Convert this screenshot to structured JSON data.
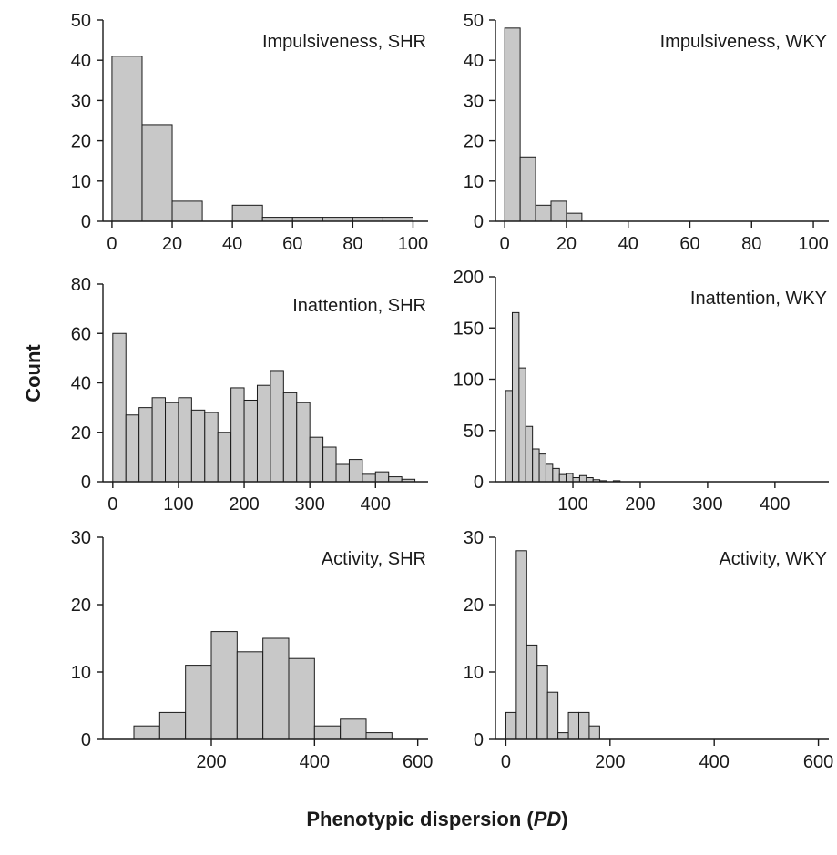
{
  "figure": {
    "ylabel": "Count",
    "xlabel_prefix": "Phenotypic dispersion (",
    "xlabel_italic": "PD",
    "xlabel_suffix": ")"
  },
  "colors": {
    "bar_fill": "#c8c8c8",
    "bar_stroke": "#1a1a1a",
    "axis": "#1a1a1a"
  },
  "chart_data": [
    {
      "type": "bar",
      "title": "Impulsiveness, SHR",
      "bin_width": 10,
      "bin_starts": [
        0,
        10,
        20,
        30,
        40,
        50,
        60,
        70,
        80,
        90
      ],
      "values": [
        41,
        24,
        5,
        0,
        4,
        1,
        1,
        1,
        1,
        1
      ],
      "xlim": [
        -3,
        105
      ],
      "ylim": [
        0,
        50
      ],
      "xticks": [
        0,
        20,
        40,
        60,
        80,
        100
      ],
      "yticks": [
        0,
        10,
        20,
        30,
        40,
        50
      ]
    },
    {
      "type": "bar",
      "title": "Impulsiveness, WKY",
      "bin_width": 5,
      "bin_starts": [
        0,
        5,
        10,
        15,
        20
      ],
      "values": [
        48,
        16,
        4,
        5,
        2
      ],
      "xlim": [
        -3,
        105
      ],
      "ylim": [
        0,
        50
      ],
      "xticks": [
        0,
        20,
        40,
        60,
        80,
        100
      ],
      "yticks": [
        0,
        10,
        20,
        30,
        40,
        50
      ]
    },
    {
      "type": "bar",
      "title": "Inattention, SHR",
      "bin_width": 20,
      "bin_starts": [
        0,
        20,
        40,
        60,
        80,
        100,
        120,
        140,
        160,
        180,
        200,
        220,
        240,
        260,
        280,
        300,
        320,
        340,
        360,
        380,
        400,
        420,
        440
      ],
      "values": [
        60,
        27,
        30,
        34,
        32,
        34,
        29,
        28,
        20,
        38,
        33,
        39,
        45,
        36,
        32,
        18,
        14,
        7,
        9,
        3,
        4,
        2,
        1
      ],
      "xlim": [
        -15,
        480
      ],
      "ylim": [
        0,
        80
      ],
      "xticks": [
        0,
        100,
        200,
        300,
        400
      ],
      "yticks": [
        0,
        20,
        40,
        60,
        80
      ]
    },
    {
      "type": "bar",
      "title": "Inattention, WKY",
      "bin_width": 10,
      "bin_starts": [
        0,
        10,
        20,
        30,
        40,
        50,
        60,
        70,
        80,
        90,
        100,
        110,
        120,
        130,
        140,
        150,
        160
      ],
      "values": [
        89,
        165,
        111,
        54,
        32,
        27,
        17,
        13,
        7,
        8,
        4,
        6,
        4,
        2,
        1,
        0,
        1
      ],
      "xlim": [
        -15,
        480
      ],
      "ylim": [
        0,
        200
      ],
      "xticks": [
        100,
        200,
        300,
        400
      ],
      "yticks": [
        0,
        50,
        100,
        150,
        200
      ]
    },
    {
      "type": "bar",
      "title": "Activity, SHR",
      "bin_width": 50,
      "bin_starts": [
        50,
        100,
        150,
        200,
        250,
        300,
        350,
        400,
        450,
        500
      ],
      "values": [
        2,
        4,
        11,
        16,
        13,
        15,
        12,
        2,
        3,
        1
      ],
      "xlim": [
        -10,
        620
      ],
      "ylim": [
        0,
        30
      ],
      "xticks": [
        200,
        400,
        600
      ],
      "yticks": [
        0,
        10,
        20,
        30
      ]
    },
    {
      "type": "bar",
      "title": "Activity, WKY",
      "bin_width": 20,
      "bin_starts": [
        0,
        20,
        40,
        60,
        80,
        100,
        120,
        140,
        160
      ],
      "values": [
        4,
        28,
        14,
        11,
        7,
        1,
        4,
        4,
        2
      ],
      "xlim": [
        -20,
        620
      ],
      "ylim": [
        0,
        30
      ],
      "xticks": [
        0,
        200,
        400,
        600
      ],
      "yticks": [
        0,
        10,
        20,
        30
      ]
    }
  ]
}
